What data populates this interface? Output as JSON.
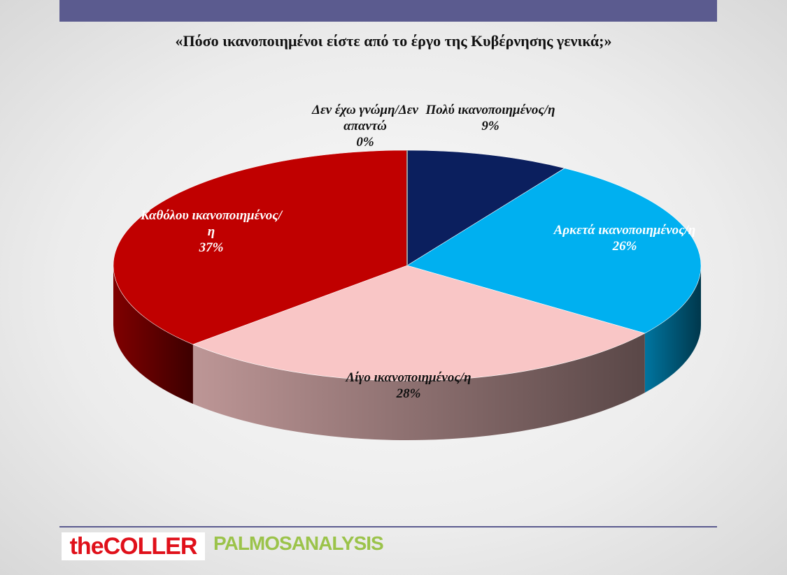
{
  "chart_data": {
    "type": "pie3d",
    "title": "«Πόσο ικανοποιημένοι είστε από το έργο της Κυβέρνησης γενικά;»",
    "categories": [
      "Πολύ ικανοποιημένος/η",
      "Αρκετά ικανοποιημένος/η",
      "Λίγο ικανοποιημένος/η",
      "Καθόλου ικανοποιημένος/η",
      "Δεν έχω γνώμη/Δεν απαντώ"
    ],
    "values": [
      9,
      26,
      28,
      37,
      0
    ],
    "value_labels": [
      "9%",
      "26%",
      "28%",
      "37%",
      "0%"
    ],
    "colors": [
      "#0b1f5e",
      "#00b0f0",
      "#f9c6c6",
      "#c00000",
      "#9a9a9a"
    ]
  },
  "logos": [
    "theCOLLER",
    "PALMOSANALYSIS"
  ]
}
